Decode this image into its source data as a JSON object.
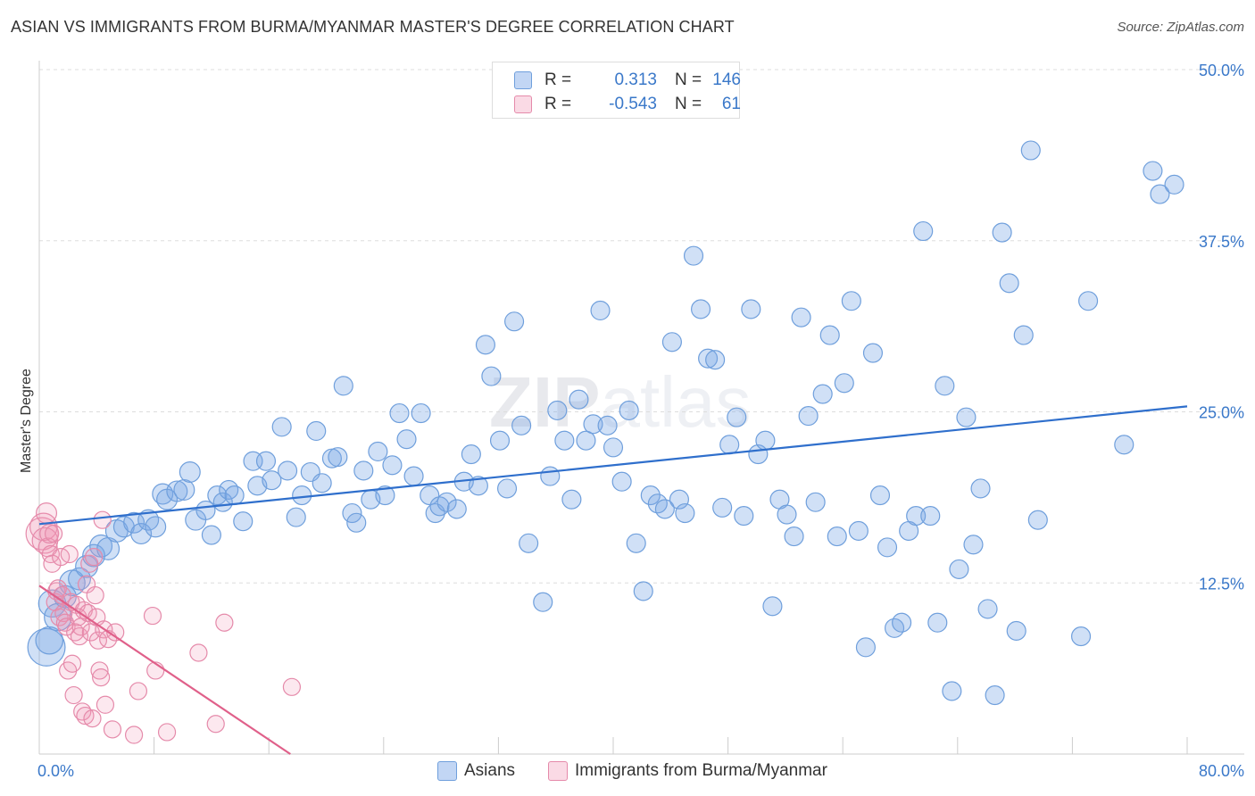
{
  "title": "ASIAN VS IMMIGRANTS FROM BURMA/MYANMAR MASTER'S DEGREE CORRELATION CHART",
  "source": "Source: ZipAtlas.com",
  "watermark": {
    "bold": "ZIP",
    "rest": "atlas"
  },
  "legend": {
    "rows": [
      {
        "r_label": "R =",
        "r_value": "0.313",
        "n_label": "N =",
        "n_value": "146"
      },
      {
        "r_label": "R =",
        "r_value": "-0.543",
        "n_label": "N =",
        "n_value": "61"
      }
    ]
  },
  "colors": {
    "asian_fill": "rgba(120,165,230,0.35)",
    "asian_stroke": "#6f9fdc",
    "asian_line": "#2f6fcc",
    "burma_fill": "rgba(240,150,180,0.22)",
    "burma_stroke": "#e58aaa",
    "burma_line": "#e0608a",
    "tick_label": "#3a78c9",
    "grid": "#dddddd"
  },
  "chart_data": {
    "type": "scatter",
    "title": "ASIAN VS IMMIGRANTS FROM BURMA/MYANMAR MASTER'S DEGREE CORRELATION CHART",
    "xlabel": "",
    "ylabel": "Master's Degree",
    "xlim": [
      0,
      80
    ],
    "ylim": [
      0,
      50
    ],
    "x_tick_labels": [
      "0.0%",
      "80.0%"
    ],
    "y_ticks": [
      12.5,
      25,
      37.5,
      50
    ],
    "y_tick_labels": [
      "12.5%",
      "25.0%",
      "37.5%",
      "50.0%"
    ],
    "grid": true,
    "legend_position": "bottom",
    "series": [
      {
        "name": "Asians",
        "r": 0.313,
        "n": 146,
        "trend": [
          [
            0,
            16.8
          ],
          [
            80,
            25.4
          ]
        ],
        "points": [
          [
            0.5,
            7.8,
            2.2
          ],
          [
            0.7,
            8.3,
            1.6
          ],
          [
            0.9,
            11.0,
            1.6
          ],
          [
            1.3,
            10.0,
            1.6
          ],
          [
            1.8,
            11.5,
            1.3
          ],
          [
            2.3,
            12.5,
            1.5
          ],
          [
            2.8,
            12.8,
            1.3
          ],
          [
            3.3,
            13.7,
            1.3
          ],
          [
            3.8,
            14.5,
            1.3
          ],
          [
            4.3,
            15.2,
            1.3
          ],
          [
            4.8,
            15.0,
            1.3
          ],
          [
            5.4,
            16.3,
            1.3
          ],
          [
            5.9,
            16.6,
            1.2
          ],
          [
            6.6,
            16.9,
            1.2
          ],
          [
            7.1,
            16.1,
            1.2
          ],
          [
            7.6,
            17.1,
            1.2
          ],
          [
            8.1,
            16.6,
            1.2
          ],
          [
            8.6,
            19.0,
            1.2
          ],
          [
            8.9,
            18.6,
            1.2
          ],
          [
            9.6,
            19.2,
            1.2
          ],
          [
            10.1,
            19.3,
            1.2
          ],
          [
            10.5,
            20.6,
            1.2
          ],
          [
            10.9,
            17.1,
            1.2
          ],
          [
            11.6,
            17.8,
            1.1
          ],
          [
            12.0,
            16.0,
            1.1
          ],
          [
            12.4,
            18.9,
            1.1
          ],
          [
            12.8,
            18.4,
            1.1
          ],
          [
            13.2,
            19.3,
            1.1
          ],
          [
            13.6,
            18.9,
            1.1
          ],
          [
            14.2,
            17.0,
            1.1
          ],
          [
            14.9,
            21.4,
            1.1
          ],
          [
            15.2,
            19.6,
            1.1
          ],
          [
            15.8,
            21.4,
            1.1
          ],
          [
            16.2,
            20.0,
            1.1
          ],
          [
            16.9,
            23.9,
            1.1
          ],
          [
            17.3,
            20.7,
            1.1
          ],
          [
            17.9,
            17.3,
            1.1
          ],
          [
            18.3,
            18.9,
            1.1
          ],
          [
            18.9,
            20.6,
            1.1
          ],
          [
            19.3,
            23.6,
            1.1
          ],
          [
            19.7,
            19.8,
            1.1
          ],
          [
            20.4,
            21.6,
            1.1
          ],
          [
            20.8,
            21.7,
            1.1
          ],
          [
            21.2,
            26.9,
            1.1
          ],
          [
            21.8,
            17.6,
            1.1
          ],
          [
            22.1,
            16.9,
            1.1
          ],
          [
            22.6,
            20.7,
            1.1
          ],
          [
            23.1,
            18.6,
            1.1
          ],
          [
            23.6,
            22.1,
            1.1
          ],
          [
            24.1,
            18.9,
            1.1
          ],
          [
            24.6,
            21.1,
            1.1
          ],
          [
            25.1,
            24.9,
            1.1
          ],
          [
            25.6,
            23.0,
            1.1
          ],
          [
            26.1,
            20.3,
            1.1
          ],
          [
            26.6,
            24.9,
            1.1
          ],
          [
            27.2,
            18.9,
            1.1
          ],
          [
            27.6,
            17.6,
            1.1
          ],
          [
            27.9,
            18.1,
            1.1
          ],
          [
            28.4,
            18.4,
            1.1
          ],
          [
            29.1,
            17.9,
            1.1
          ],
          [
            29.6,
            19.9,
            1.1
          ],
          [
            30.1,
            21.9,
            1.1
          ],
          [
            30.6,
            19.6,
            1.1
          ],
          [
            31.1,
            29.9,
            1.1
          ],
          [
            31.5,
            27.6,
            1.1
          ],
          [
            32.1,
            22.9,
            1.1
          ],
          [
            32.6,
            19.4,
            1.1
          ],
          [
            33.1,
            31.6,
            1.1
          ],
          [
            33.6,
            24.0,
            1.1
          ],
          [
            34.1,
            15.4,
            1.1
          ],
          [
            35.1,
            11.1,
            1.1
          ],
          [
            35.6,
            20.3,
            1.1
          ],
          [
            36.1,
            25.1,
            1.1
          ],
          [
            36.6,
            22.9,
            1.1
          ],
          [
            37.1,
            18.6,
            1.1
          ],
          [
            37.6,
            25.9,
            1.1
          ],
          [
            38.1,
            22.9,
            1.1
          ],
          [
            38.6,
            24.1,
            1.1
          ],
          [
            39.1,
            32.4,
            1.1
          ],
          [
            39.6,
            24.0,
            1.1
          ],
          [
            40.0,
            22.4,
            1.1
          ],
          [
            40.6,
            19.9,
            1.1
          ],
          [
            41.1,
            25.1,
            1.1
          ],
          [
            41.6,
            15.4,
            1.1
          ],
          [
            42.1,
            11.9,
            1.1
          ],
          [
            42.6,
            18.9,
            1.1
          ],
          [
            43.1,
            18.3,
            1.1
          ],
          [
            43.6,
            17.9,
            1.1
          ],
          [
            44.1,
            30.1,
            1.1
          ],
          [
            44.6,
            18.6,
            1.1
          ],
          [
            45.0,
            17.6,
            1.1
          ],
          [
            45.6,
            36.4,
            1.1
          ],
          [
            46.1,
            32.5,
            1.1
          ],
          [
            46.6,
            28.9,
            1.1
          ],
          [
            47.1,
            28.8,
            1.1
          ],
          [
            47.6,
            18.0,
            1.1
          ],
          [
            48.1,
            22.6,
            1.1
          ],
          [
            48.6,
            24.6,
            1.1
          ],
          [
            49.1,
            17.4,
            1.1
          ],
          [
            49.6,
            32.5,
            1.1
          ],
          [
            50.1,
            21.9,
            1.1
          ],
          [
            50.6,
            22.9,
            1.1
          ],
          [
            51.1,
            10.8,
            1.1
          ],
          [
            51.6,
            18.6,
            1.1
          ],
          [
            52.1,
            17.5,
            1.1
          ],
          [
            52.6,
            15.9,
            1.1
          ],
          [
            53.1,
            31.9,
            1.1
          ],
          [
            53.6,
            24.7,
            1.1
          ],
          [
            54.1,
            18.4,
            1.1
          ],
          [
            54.6,
            26.3,
            1.1
          ],
          [
            55.1,
            30.6,
            1.1
          ],
          [
            55.6,
            15.9,
            1.1
          ],
          [
            56.1,
            27.1,
            1.1
          ],
          [
            56.6,
            33.1,
            1.1
          ],
          [
            57.1,
            16.3,
            1.1
          ],
          [
            57.6,
            7.8,
            1.1
          ],
          [
            58.1,
            29.3,
            1.1
          ],
          [
            58.6,
            18.9,
            1.1
          ],
          [
            59.1,
            15.1,
            1.1
          ],
          [
            59.6,
            9.2,
            1.1
          ],
          [
            60.1,
            9.6,
            1.1
          ],
          [
            60.6,
            16.3,
            1.1
          ],
          [
            61.1,
            17.4,
            1.1
          ],
          [
            61.6,
            38.2,
            1.1
          ],
          [
            62.1,
            17.4,
            1.1
          ],
          [
            62.6,
            9.6,
            1.1
          ],
          [
            63.1,
            26.9,
            1.1
          ],
          [
            63.6,
            4.6,
            1.1
          ],
          [
            64.1,
            13.5,
            1.1
          ],
          [
            64.6,
            24.6,
            1.1
          ],
          [
            65.1,
            15.3,
            1.1
          ],
          [
            65.6,
            19.4,
            1.1
          ],
          [
            66.1,
            10.6,
            1.1
          ],
          [
            66.6,
            4.3,
            1.1
          ],
          [
            67.1,
            38.1,
            1.1
          ],
          [
            67.6,
            34.4,
            1.1
          ],
          [
            68.1,
            9.0,
            1.1
          ],
          [
            68.6,
            30.6,
            1.1
          ],
          [
            69.1,
            44.1,
            1.1
          ],
          [
            69.6,
            17.1,
            1.1
          ],
          [
            72.6,
            8.6,
            1.1
          ],
          [
            73.1,
            33.1,
            1.1
          ],
          [
            75.6,
            22.6,
            1.1
          ],
          [
            77.6,
            42.6,
            1.1
          ],
          [
            78.1,
            40.9,
            1.1
          ],
          [
            79.1,
            41.6,
            1.1
          ]
        ]
      },
      {
        "name": "Immigrants from Burma/Myanmar",
        "r": -0.543,
        "n": 61,
        "trend": [
          [
            0,
            12.3
          ],
          [
            17.5,
            0
          ]
        ],
        "points": [
          [
            0.2,
            16.1,
            1.9
          ],
          [
            0.3,
            16.6,
            1.6
          ],
          [
            0.4,
            15.6,
            1.5
          ],
          [
            0.5,
            17.6,
            1.2
          ],
          [
            0.6,
            15.1,
            1.1
          ],
          [
            0.7,
            16.1,
            1.1
          ],
          [
            0.8,
            14.6,
            1.0
          ],
          [
            0.9,
            13.9,
            1.0
          ],
          [
            1.0,
            16.1,
            1.0
          ],
          [
            1.1,
            11.1,
            1.0
          ],
          [
            1.2,
            11.9,
            1.0
          ],
          [
            1.3,
            12.1,
            1.0
          ],
          [
            1.4,
            10.0,
            1.0
          ],
          [
            1.5,
            14.4,
            1.0
          ],
          [
            1.6,
            11.6,
            1.0
          ],
          [
            1.7,
            10.3,
            1.0
          ],
          [
            1.8,
            9.6,
            1.0
          ],
          [
            1.9,
            9.3,
            1.0
          ],
          [
            2.0,
            6.1,
            1.0
          ],
          [
            2.1,
            14.6,
            1.0
          ],
          [
            2.2,
            11.1,
            1.0
          ],
          [
            2.3,
            6.6,
            1.0
          ],
          [
            2.4,
            4.3,
            1.0
          ],
          [
            2.5,
            8.9,
            1.0
          ],
          [
            2.6,
            10.9,
            1.0
          ],
          [
            2.7,
            10.0,
            1.0
          ],
          [
            2.8,
            8.6,
            1.0
          ],
          [
            2.9,
            9.3,
            1.0
          ],
          [
            3.0,
            3.1,
            1.0
          ],
          [
            3.1,
            10.5,
            1.0
          ],
          [
            3.2,
            2.8,
            1.0
          ],
          [
            3.3,
            12.4,
            1.0
          ],
          [
            3.4,
            10.3,
            1.0
          ],
          [
            3.5,
            13.9,
            1.0
          ],
          [
            3.6,
            8.9,
            1.0
          ],
          [
            3.7,
            2.6,
            1.0
          ],
          [
            3.8,
            14.4,
            1.0
          ],
          [
            3.9,
            11.6,
            1.0
          ],
          [
            4.0,
            10.0,
            1.0
          ],
          [
            4.1,
            8.3,
            1.0
          ],
          [
            4.2,
            6.1,
            1.0
          ],
          [
            4.3,
            5.6,
            1.0
          ],
          [
            4.4,
            17.1,
            1.0
          ],
          [
            4.5,
            9.1,
            1.0
          ],
          [
            4.6,
            3.6,
            1.0
          ],
          [
            4.8,
            8.4,
            1.0
          ],
          [
            5.1,
            1.8,
            1.0
          ],
          [
            5.3,
            8.9,
            1.0
          ],
          [
            6.6,
            1.4,
            1.0
          ],
          [
            6.9,
            4.6,
            1.0
          ],
          [
            7.9,
            10.1,
            1.0
          ],
          [
            8.1,
            6.1,
            1.0
          ],
          [
            8.9,
            1.6,
            1.0
          ],
          [
            11.1,
            7.4,
            1.0
          ],
          [
            12.3,
            2.2,
            1.0
          ],
          [
            12.9,
            9.6,
            1.0
          ],
          [
            17.6,
            4.9,
            1.0
          ]
        ]
      }
    ]
  }
}
